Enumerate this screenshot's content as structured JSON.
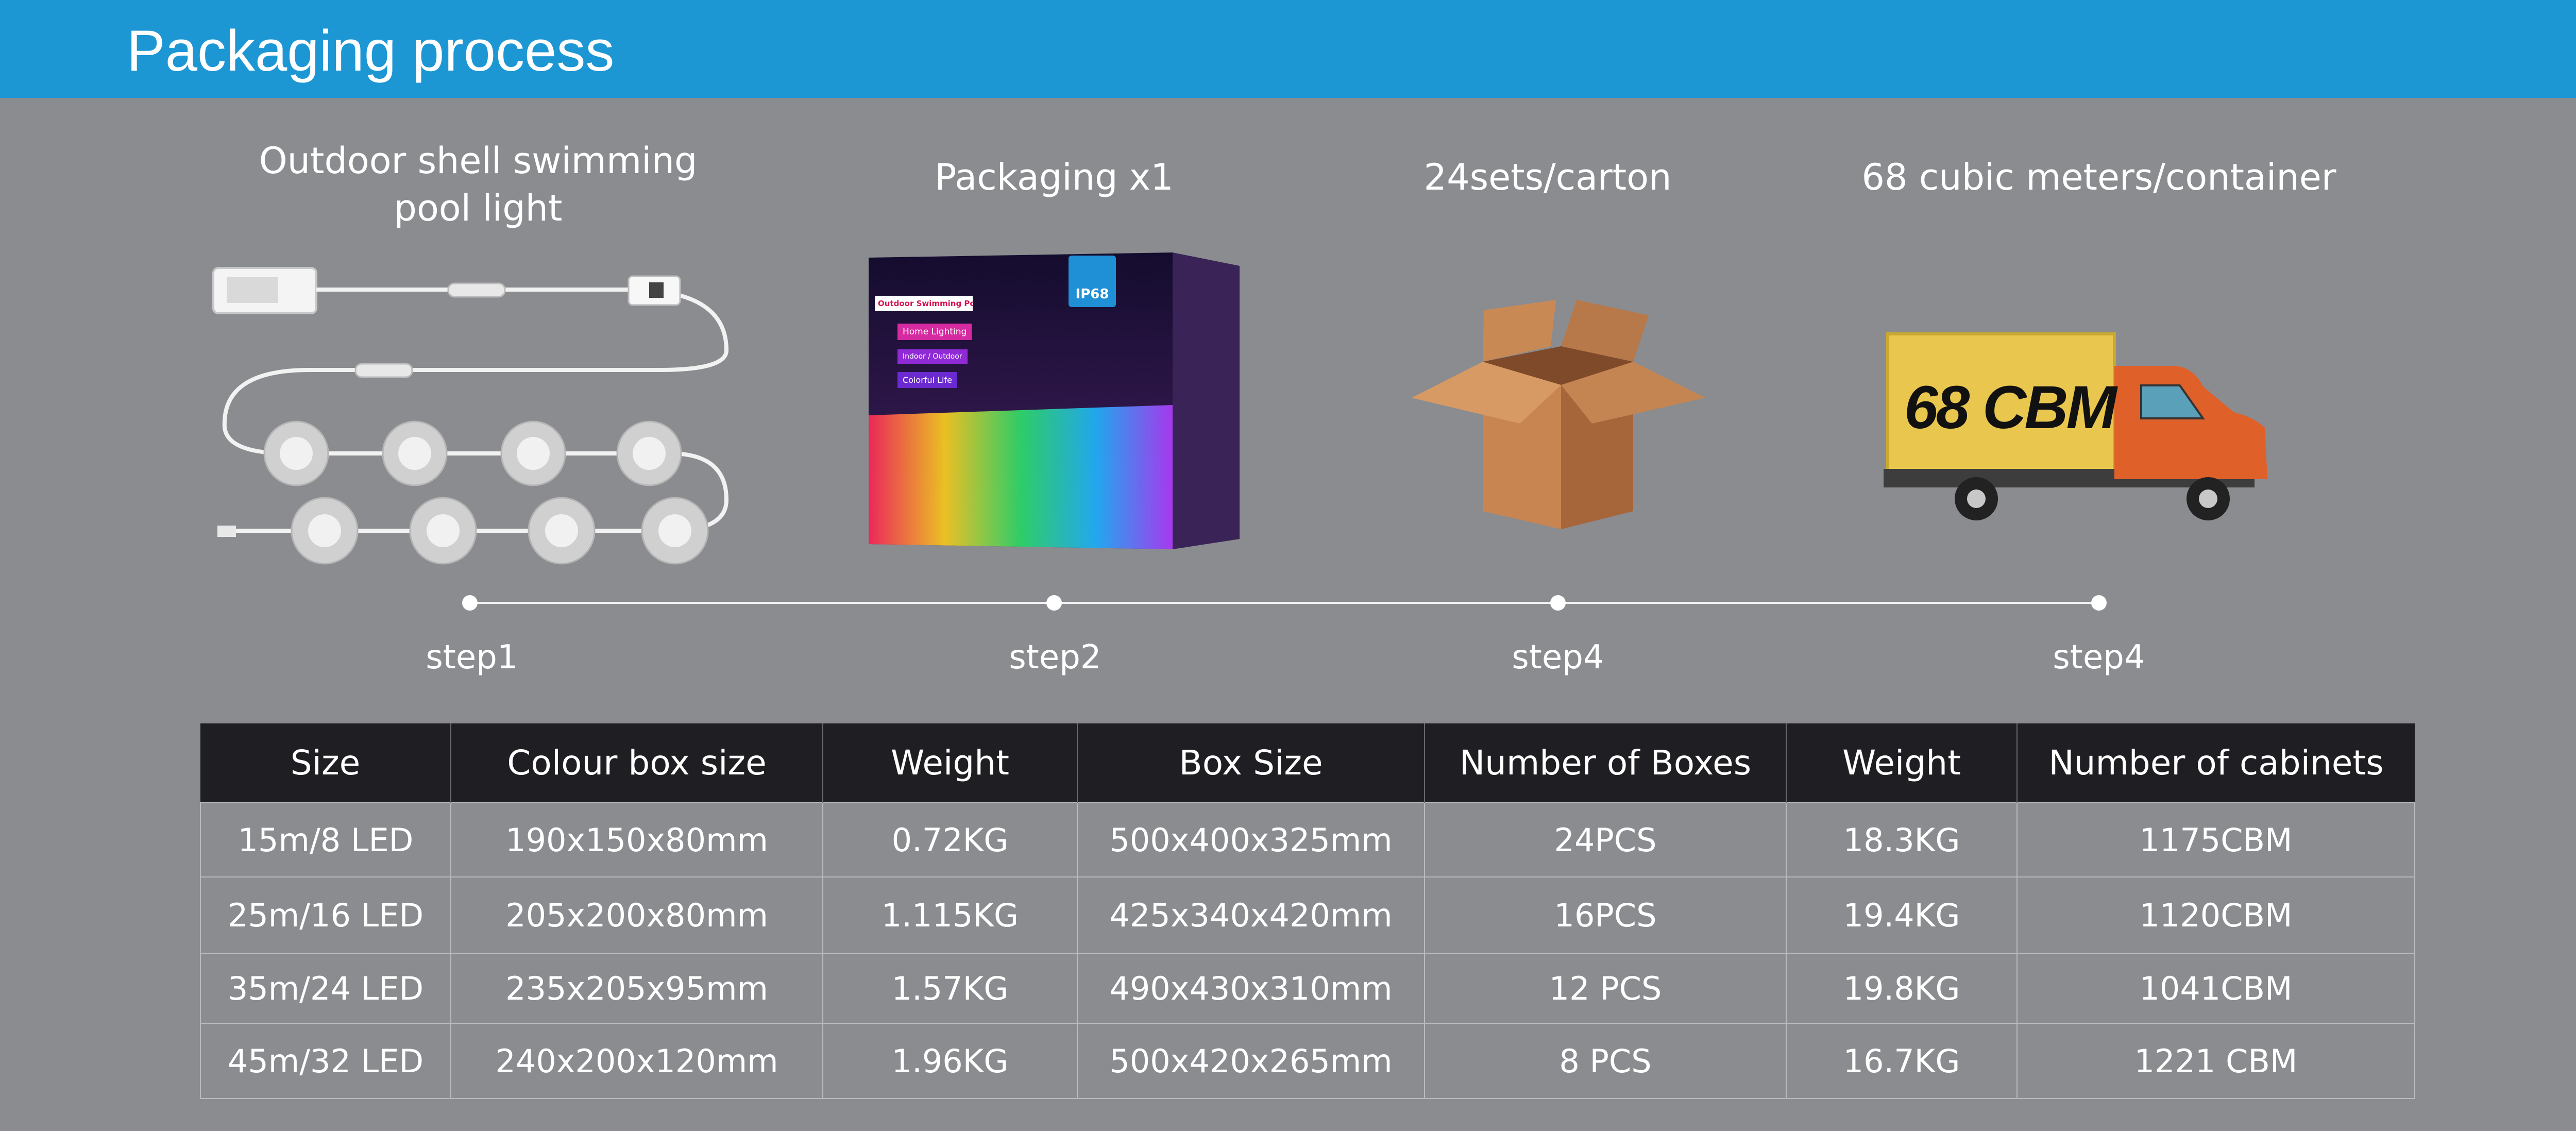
{
  "header": {
    "title": "Packaging process"
  },
  "captions": [
    {
      "line1": "Outdoor shell swimming",
      "line2": "pool light"
    },
    {
      "line1": "Packaging x1"
    },
    {
      "line1": "24sets/carton"
    },
    {
      "line1": "68 cubic meters/container"
    }
  ],
  "steps": [
    "step1",
    "step2",
    "step4",
    "step4"
  ],
  "product_box": {
    "badge": "IP68",
    "tag1": "Outdoor Swimming Pool Light",
    "tag2": "Home Lighting",
    "tag3": "Indoor / Outdoor",
    "tag4": "Colorful Life"
  },
  "truck": {
    "label": "68 CBM"
  },
  "table": {
    "headers": [
      "Size",
      "Colour box size",
      "Weight",
      "Box Size",
      "Number of Boxes",
      "Weight",
      "Number of cabinets"
    ],
    "rows": [
      [
        "15m/8 LED",
        "190x150x80mm",
        "0.72KG",
        "500x400x325mm",
        "24PCS",
        "18.3KG",
        "1175CBM"
      ],
      [
        "25m/16 LED",
        "205x200x80mm",
        "1.115KG",
        "425x340x420mm",
        "16PCS",
        "19.4KG",
        "1120CBM"
      ],
      [
        "35m/24 LED",
        "235x205x95mm",
        "1.57KG",
        "490x430x310mm",
        "12 PCS",
        "19.8KG",
        "1041CBM"
      ],
      [
        "45m/32 LED",
        "240x200x120mm",
        "1.96KG",
        "500x420x265mm",
        "8 PCS",
        "16.7KG",
        "1221 CBM"
      ]
    ]
  },
  "colors": {
    "header_bg": "#1d97d4",
    "page_bg": "#8a8c90",
    "table_header_bg": "#1f1e22",
    "truck_cab": "#e0602a",
    "truck_box": "#e9c64e",
    "carton": "#b87442"
  }
}
